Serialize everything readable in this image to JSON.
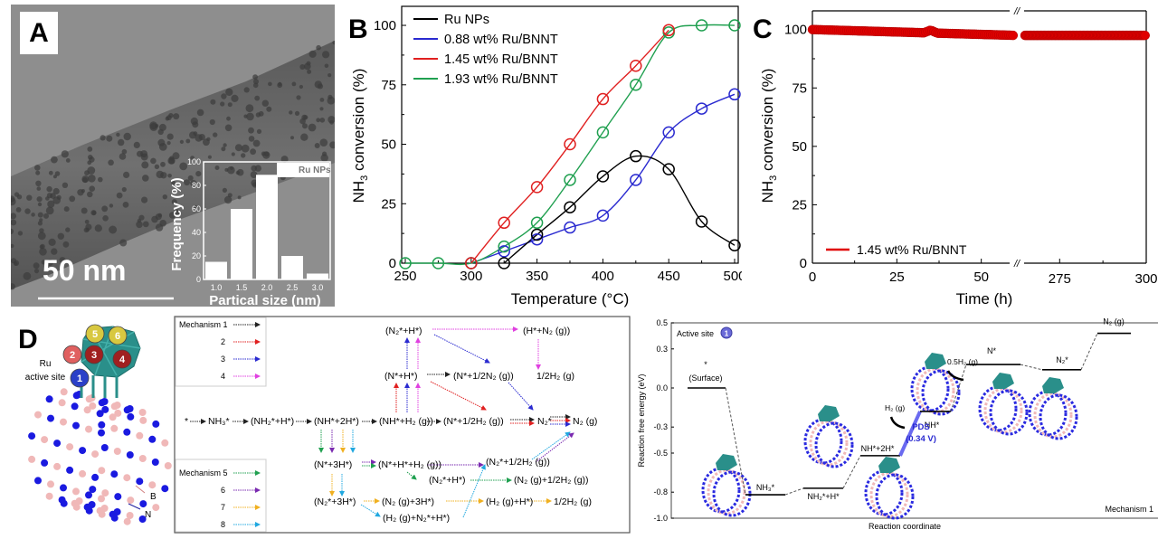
{
  "panel_labels": {
    "a": "A",
    "b": "B",
    "c": "C",
    "d": "D"
  },
  "panel_a": {
    "scale_bar": "50 nm",
    "inset_legend": "Ru NPs"
  },
  "panel_d": {
    "model_labels": {
      "ru_site": "Ru",
      "active_site": "active site",
      "boron": "B",
      "nitrogen": "N"
    },
    "site_numbers": [
      "1",
      "2",
      "3",
      "4",
      "5",
      "6"
    ],
    "legend_top": {
      "title": "Mechanism 1",
      "items": [
        "2",
        "3",
        "4"
      ]
    },
    "legend_bottom": {
      "title": "Mechanism 5",
      "items": [
        "6",
        "7",
        "8"
      ]
    },
    "mechanism_colors": {
      "1": "#222222",
      "2": "#e02020",
      "3": "#2a2ad0",
      "4": "#e040e0",
      "5": "#20a050",
      "6": "#7a2ab0",
      "7": "#f0b020",
      "8": "#20a8e0"
    },
    "species": {
      "star": "*",
      "nh3": "NH₃*",
      "nh2h": "(NH₂*+H*)",
      "nh2h2": "(NH*+2H*)",
      "nhh2g": "(NH*+H₂ (g))",
      "nhalfh2": "(N*+1/2H₂ (g))",
      "n2star": "N₂*",
      "n2g": "N₂ (g)",
      "nh": "(N*+H*)",
      "n2h": "(N₂*+H*)",
      "nhalfn2": "(N*+1/2N₂ (g))",
      "hn2g": "(H*+N₂ (g))",
      "halfh2": "1/2H₂ (g)",
      "n3h": "(N*+3H*)",
      "nhh2": "(N*+H*+H₂ (g))",
      "n2halfh2": "(N₂*+1/2H₂ (g))",
      "n2h_b": "(N₂*+H*)",
      "n2ghalfh2": "(N₂ (g)+1/2H₂ (g))",
      "n23h": "(N₂*+3H*)",
      "n2g3h": "(N₂ (g)+3H*)",
      "h2gh": "(H₂ (g)+H*)",
      "halfh2_b": "1/2H₂ (g)",
      "h2gn2h": "(H₂ (g)+N₂*+H*)"
    }
  },
  "chart_data": [
    {
      "id": "A-inset",
      "type": "bar",
      "title": "",
      "xlabel": "Partical size (nm)",
      "ylabel": "Frequency (%)",
      "categories": [
        "1.0",
        "1.5",
        "2.0",
        "2.5",
        "3.0"
      ],
      "values": [
        15,
        60,
        89,
        20,
        5
      ],
      "ylim": [
        0,
        100
      ],
      "yticks": [
        0,
        20,
        40,
        60,
        80,
        100
      ],
      "legend": [
        "Ru NPs"
      ],
      "legend_position": "top-right"
    },
    {
      "id": "B",
      "type": "line",
      "xlabel": "Temperature (°C)",
      "ylabel": "NH3 conversion (%)",
      "xlim": [
        250,
        500
      ],
      "ylim": [
        0,
        108
      ],
      "xticks": [
        250,
        300,
        350,
        400,
        450,
        500
      ],
      "yticks": [
        0,
        25,
        50,
        75,
        100
      ],
      "legend_position": "top-left",
      "series": [
        {
          "name": "Ru NPs",
          "color": "#000000",
          "x": [
            325,
            350,
            375,
            400,
            425,
            450,
            475,
            500
          ],
          "y": [
            0,
            12,
            23.5,
            36.5,
            45,
            39.5,
            17.5,
            7.5
          ]
        },
        {
          "name": "0.88 wt% Ru/BNNT",
          "color": "#2a2ad0",
          "x": [
            300,
            325,
            350,
            375,
            400,
            425,
            450,
            475,
            500
          ],
          "y": [
            0,
            5,
            10,
            15,
            20,
            35,
            55,
            65,
            71
          ]
        },
        {
          "name": "1.45 wt% Ru/BNNT",
          "color": "#e02020",
          "x": [
            300,
            325,
            350,
            375,
            400,
            425,
            450
          ],
          "y": [
            0,
            17,
            32,
            50,
            69,
            83,
            98
          ]
        },
        {
          "name": "1.93 wt% Ru/BNNT",
          "color": "#20a050",
          "x": [
            250,
            275,
            300,
            325,
            350,
            375,
            400,
            425,
            450,
            475,
            500
          ],
          "y": [
            0,
            0,
            0,
            7,
            17,
            35,
            55,
            75,
            97,
            100,
            100
          ]
        }
      ]
    },
    {
      "id": "C",
      "type": "scatter",
      "xlabel": "Time (h)",
      "ylabel": "NH3 conversion (%)",
      "ylim": [
        0,
        108
      ],
      "xticks": [
        "0",
        "25",
        "50",
        "275",
        "300"
      ],
      "yticks": [
        0,
        25,
        50,
        75,
        100
      ],
      "axis_break": "between 60 and 265",
      "legend_position": "bottom-left",
      "series": [
        {
          "name": "1.45 wt% Ru/BNNT",
          "color": "#e00000",
          "segments": [
            {
              "x_start": 0,
              "x_end": 60,
              "y_start": 100,
              "y_end": 97.5,
              "bump_at": 35,
              "bump_y": 100
            },
            {
              "x_start": 265,
              "x_end": 300,
              "y_start": 97.5,
              "y_end": 97.5
            }
          ]
        }
      ]
    },
    {
      "id": "D-energy",
      "type": "line",
      "xlabel": "Reaction coordinate",
      "ylabel": "Reaction free energy (eV)",
      "ylim": [
        -1.0,
        0.5
      ],
      "yticks": [
        "0.5",
        "0.3",
        "0.0",
        "-0.3",
        "-0.5",
        "-0.8",
        "-1.0"
      ],
      "annotations": {
        "active_site": "Active site",
        "site_number": "1",
        "mechanism": "Mechanism 1",
        "pds": "PDS",
        "pds_value": "(0.34 V)",
        "h2g": "H₂ (g)",
        "half_h2g": "0.5H₂ (g)"
      },
      "states": [
        {
          "label": "*",
          "sublabel": "(Surface)",
          "energy": 0.0
        },
        {
          "label": "NH₃*",
          "energy": -0.82
        },
        {
          "label": "NH₂*+H*",
          "energy": -0.77
        },
        {
          "label": "NH*+2H*",
          "energy": -0.52
        },
        {
          "label": "NH*",
          "energy": -0.18
        },
        {
          "label": "N*",
          "energy": 0.18
        },
        {
          "label": "N₂*",
          "energy": 0.14
        },
        {
          "label": "N₂ (g)",
          "energy": 0.42
        }
      ]
    }
  ]
}
